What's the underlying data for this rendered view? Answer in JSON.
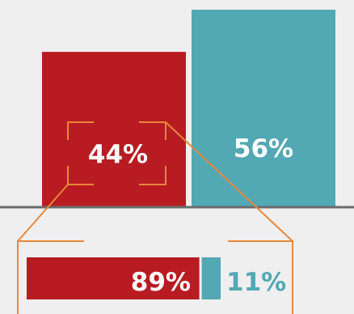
{
  "chart_data": [
    {
      "type": "bar",
      "categories": [
        "",
        ""
      ],
      "values": [
        44,
        56
      ],
      "value_labels": [
        "44%",
        "56%"
      ],
      "colors": [
        "#b81c22",
        "#52a8b3"
      ]
    },
    {
      "type": "bar",
      "orientation": "horizontal-stacked",
      "values": [
        89,
        11
      ],
      "value_labels": [
        "89%",
        "11%"
      ],
      "colors": [
        "#b81c22",
        "#52a8b3"
      ]
    }
  ],
  "colors": {
    "background": "#efefef",
    "baseline": "#6b6b6b",
    "callout": "#e8873a",
    "label_on_bar": "#ffffff"
  }
}
